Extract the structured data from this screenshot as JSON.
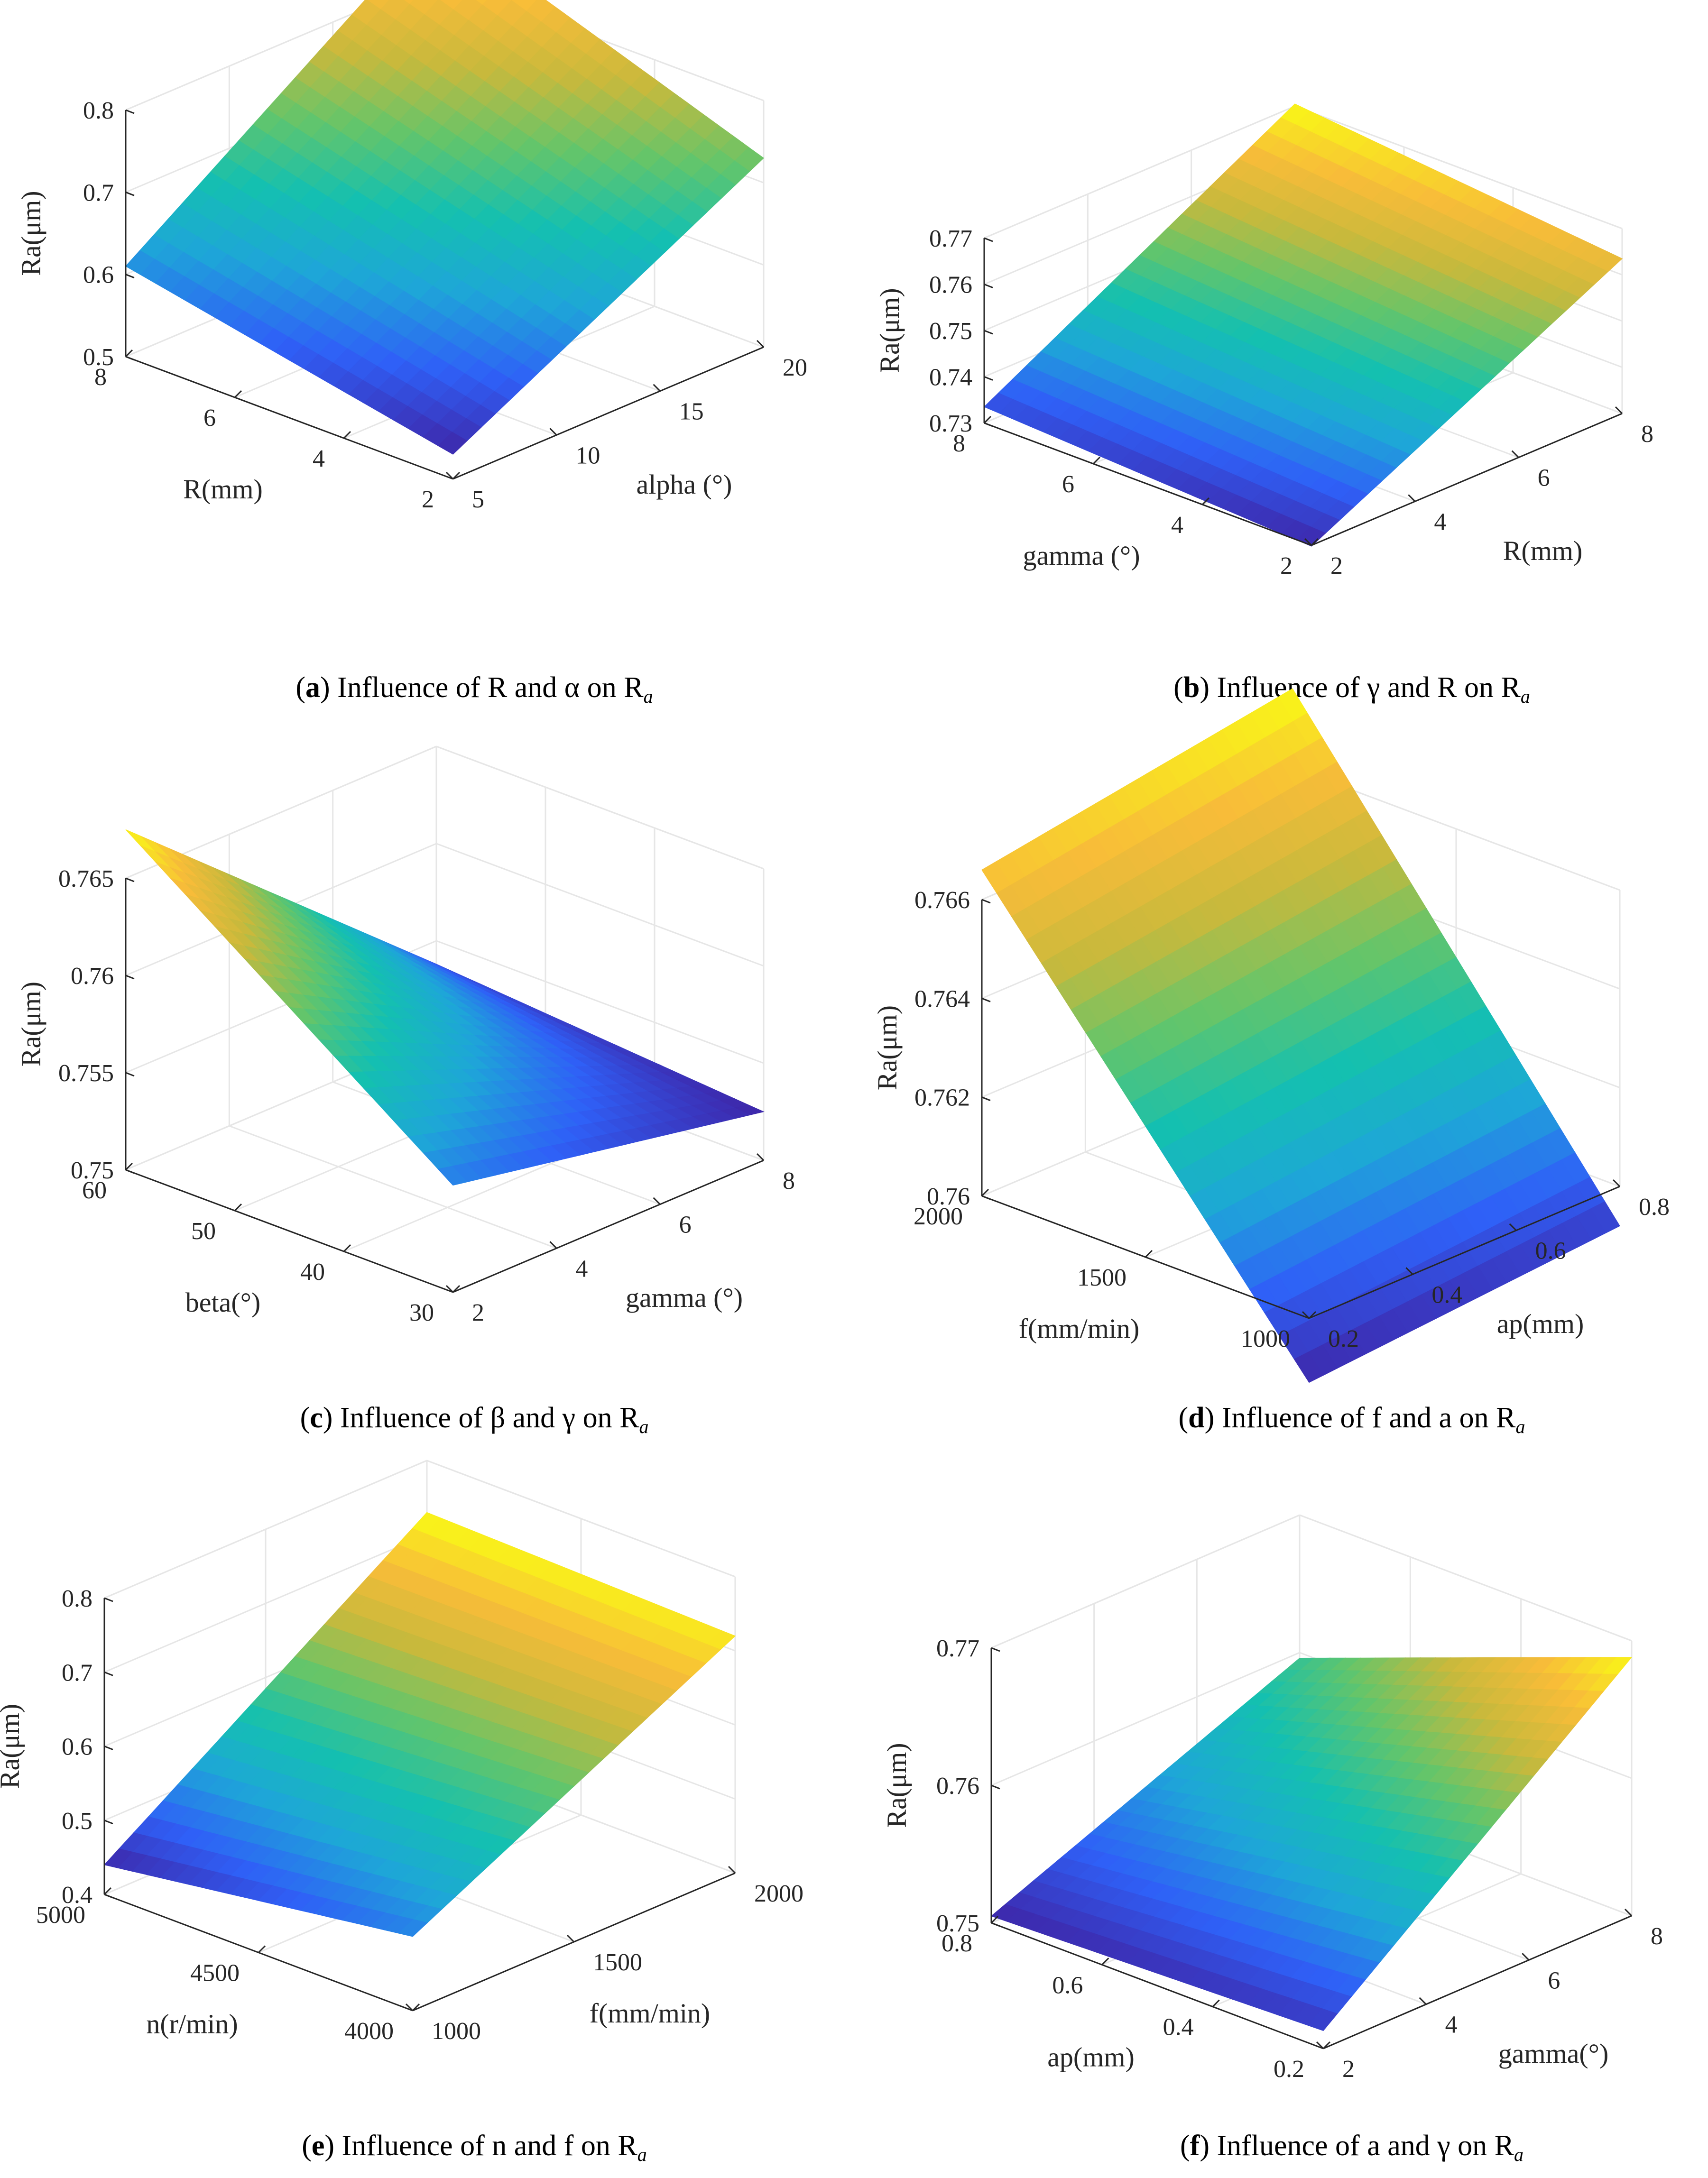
{
  "figure_title": "",
  "colors": {
    "axis": "#262626",
    "grid": "#e6e6e6",
    "colormap": [
      "#3e26a8",
      "#2f60f7",
      "#1ea6d8",
      "#14c0b0",
      "#64c56a",
      "#c8b93c",
      "#f8bc39",
      "#f9fb15"
    ]
  },
  "chart_data": [
    {
      "id": "a",
      "type": "surface",
      "caption": {
        "label": "a",
        "text": "Influence of R and α on R",
        "sub": "a"
      },
      "xlabel": "R(mm)",
      "ylabel": "alpha (°)",
      "zlabel": "Ra(μm)",
      "x_ticks": [
        2,
        4,
        6,
        8
      ],
      "y_ticks": [
        5,
        10,
        15,
        20
      ],
      "z_ticks": [
        0.5,
        0.6,
        0.7,
        0.8
      ],
      "x_tick_labels": [
        "2",
        "4",
        "6",
        "8"
      ],
      "y_tick_labels": [
        "5",
        "10",
        "15",
        "20"
      ],
      "z_tick_labels": [
        "0.5",
        "0.6",
        "0.7",
        "0.8"
      ],
      "xlim": [
        2,
        8
      ],
      "ylim": [
        5,
        20
      ],
      "zlim": [
        0.5,
        0.8
      ],
      "corner_values": {
        "min_min": 0.53,
        "min_max": 0.73,
        "max_min": 0.61,
        "max_max": 0.87
      },
      "color_range": [
        0.53,
        0.87
      ]
    },
    {
      "id": "b",
      "type": "surface",
      "caption": {
        "label": "b",
        "text": "Influence of γ and R on R",
        "sub": "a"
      },
      "xlabel": "gamma (°)",
      "ylabel": "R(mm)",
      "zlabel": "Ra(μm)",
      "x_ticks": [
        2,
        4,
        6,
        8
      ],
      "y_ticks": [
        2,
        4,
        6,
        8
      ],
      "z_ticks": [
        0.73,
        0.74,
        0.75,
        0.76,
        0.77
      ],
      "x_tick_labels": [
        "2",
        "4",
        "6",
        "8"
      ],
      "y_tick_labels": [
        "2",
        "4",
        "6",
        "8"
      ],
      "z_tick_labels": [
        "0.73",
        "0.74",
        "0.75",
        "0.76",
        "0.77"
      ],
      "xlim": [
        2,
        8
      ],
      "ylim": [
        2,
        8
      ],
      "zlim": [
        0.73,
        0.77
      ],
      "corner_values": {
        "min_min": 0.7298,
        "min_max": 0.7635,
        "max_min": 0.7335,
        "max_max": 0.7705
      },
      "color_range": [
        0.7298,
        0.7705
      ]
    },
    {
      "id": "c",
      "type": "surface",
      "caption": {
        "label": "c",
        "text": "Influence of β and γ on R",
        "sub": "a"
      },
      "xlabel": "beta(°)",
      "ylabel": "gamma (°)",
      "zlabel": "Ra(μm)",
      "x_ticks": [
        30,
        40,
        50,
        60
      ],
      "y_ticks": [
        2,
        4,
        6,
        8
      ],
      "z_ticks": [
        0.75,
        0.755,
        0.76,
        0.765
      ],
      "x_tick_labels": [
        "30",
        "40",
        "50",
        "60"
      ],
      "y_tick_labels": [
        "2",
        "4",
        "6",
        "8"
      ],
      "z_tick_labels": [
        "0.75",
        "0.755",
        "0.76",
        "0.765"
      ],
      "xlim": [
        30,
        60
      ],
      "ylim": [
        2,
        8
      ],
      "zlim": [
        0.75,
        0.765
      ],
      "corner_values": {
        "min_min": 0.7555,
        "min_max": 0.7525,
        "max_min": 0.7675,
        "max_max": 0.7538
      },
      "color_range": [
        0.7525,
        0.7675
      ]
    },
    {
      "id": "d",
      "type": "surface",
      "caption": {
        "label": "d",
        "text": "Influence of f and a on R",
        "sub": "a"
      },
      "xlabel": "f(mm/min)",
      "ylabel": "ap(mm)",
      "zlabel": "Ra(μm)",
      "x_ticks": [
        1000,
        1500,
        2000
      ],
      "y_ticks": [
        0.2,
        0.4,
        0.6,
        0.8
      ],
      "z_ticks": [
        0.76,
        0.762,
        0.764,
        0.766
      ],
      "x_tick_labels": [
        "1000",
        "1500",
        "2000"
      ],
      "y_tick_labels": [
        "0.2",
        "0.4",
        "0.6",
        "0.8"
      ],
      "z_tick_labels": [
        "0.76",
        "0.762",
        "0.764",
        "0.766"
      ],
      "xlim": [
        1000,
        2000
      ],
      "ylim": [
        0.2,
        0.8
      ],
      "zlim": [
        0.76,
        0.766
      ],
      "corner_values": {
        "min_min": 0.7587,
        "min_max": 0.7592,
        "max_min": 0.7666,
        "max_max": 0.7676
      },
      "color_range": [
        0.7587,
        0.7676
      ]
    },
    {
      "id": "e",
      "type": "surface",
      "caption": {
        "label": "e",
        "text": "Influence of n and f on R",
        "sub": "a"
      },
      "xlabel": "n(r/min)",
      "ylabel": "f(mm/min)",
      "zlabel": "Ra(μm)",
      "x_ticks": [
        4000,
        4500,
        5000
      ],
      "y_ticks": [
        1000,
        1500,
        2000
      ],
      "z_ticks": [
        0.4,
        0.5,
        0.6,
        0.7,
        0.8
      ],
      "x_tick_labels": [
        "4000",
        "4500",
        "5000"
      ],
      "y_tick_labels": [
        "1000",
        "1500",
        "2000"
      ],
      "z_tick_labels": [
        "0.4",
        "0.5",
        "0.6",
        "0.7",
        "0.8"
      ],
      "xlim": [
        4000,
        5000
      ],
      "ylim": [
        1000,
        2000
      ],
      "zlim": [
        0.4,
        0.8
      ],
      "corner_values": {
        "min_min": 0.5,
        "min_max": 0.72,
        "max_min": 0.44,
        "max_max": 0.73
      },
      "color_range": [
        0.44,
        0.73
      ]
    },
    {
      "id": "f",
      "type": "surface",
      "caption": {
        "label": "f",
        "text": "Influence of a and γ on R",
        "sub": "a"
      },
      "xlabel": "ap(mm)",
      "ylabel": "gamma(°)",
      "zlabel": "Ra(μm)",
      "x_ticks": [
        0.2,
        0.4,
        0.6,
        0.8
      ],
      "y_ticks": [
        2,
        4,
        6,
        8
      ],
      "z_ticks": [
        0.75,
        0.76,
        0.77
      ],
      "x_tick_labels": [
        "0.2",
        "0.4",
        "0.6",
        "0.8"
      ],
      "y_tick_labels": [
        "2",
        "4",
        "6",
        "8"
      ],
      "z_tick_labels": [
        "0.75",
        "0.76",
        "0.77"
      ],
      "xlim": [
        0.2,
        0.8
      ],
      "ylim": [
        2,
        8
      ],
      "zlim": [
        0.75,
        0.77
      ],
      "corner_values": {
        "min_min": 0.7513,
        "min_max": 0.7688,
        "max_min": 0.7505,
        "max_max": 0.7596
      },
      "color_range": [
        0.7505,
        0.7688
      ]
    }
  ]
}
